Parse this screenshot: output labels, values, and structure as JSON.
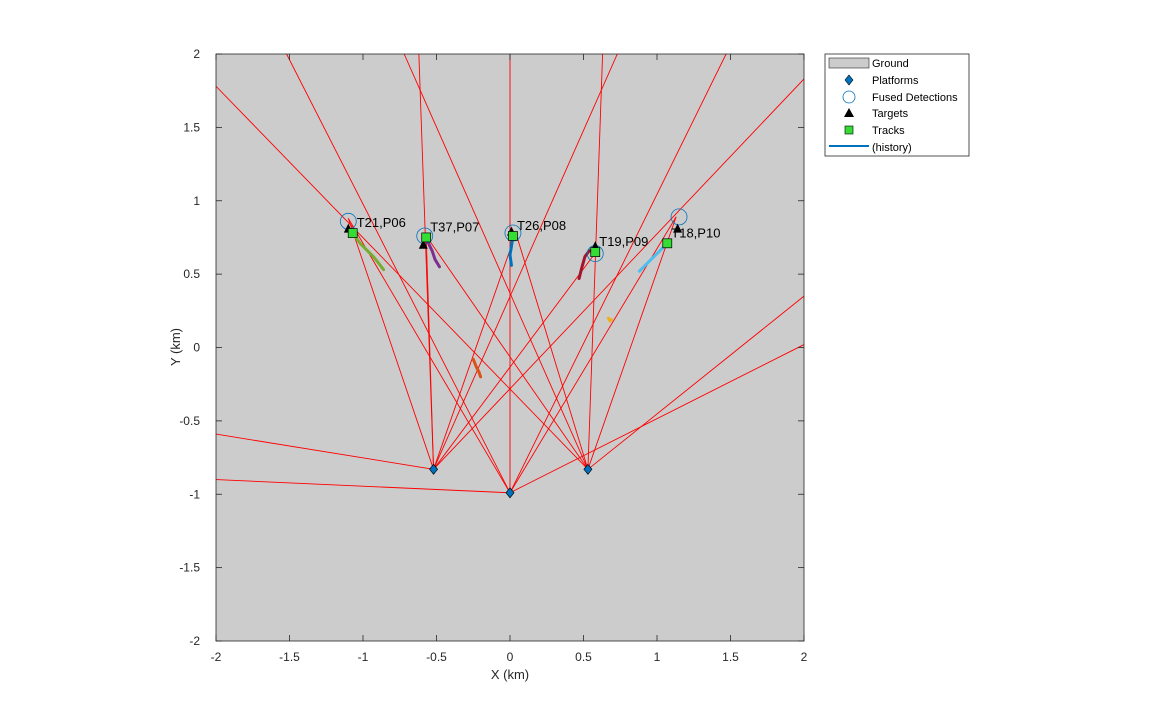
{
  "chart_data": {
    "type": "scatter",
    "xlabel": "X (km)",
    "ylabel": "Y (km)",
    "xlim": [
      -2,
      2
    ],
    "ylim": [
      -2,
      2
    ],
    "x_ticks": [
      -2,
      -1.5,
      -1,
      -0.5,
      0,
      0.5,
      1,
      1.5,
      2
    ],
    "y_ticks": [
      -2,
      -1.5,
      -1,
      -0.5,
      0,
      0.5,
      1,
      1.5,
      2
    ],
    "grid": false,
    "legend_position": "outside-top-right",
    "colors": {
      "ground": "#cccccc",
      "platform": "#0072bd",
      "fused_detection": "#0072bd",
      "target": "#000000",
      "track": "#33dd33",
      "history": "#0072bd",
      "coverage": "#ff0000"
    },
    "legend": [
      "Ground",
      "Platforms",
      "Fused Detections",
      "Targets",
      "Tracks",
      "(history)"
    ],
    "platforms": [
      {
        "x": -0.52,
        "y": -0.83
      },
      {
        "x": 0.0,
        "y": -0.99
      },
      {
        "x": 0.53,
        "y": -0.83
      }
    ],
    "coverage_rays": [
      {
        "from": [
          -0.52,
          -0.83
        ],
        "to": [
          -2.0,
          -0.59
        ]
      },
      {
        "from": [
          -0.52,
          -0.83
        ],
        "to": [
          -0.62,
          2.0
        ]
      },
      {
        "from": [
          -0.52,
          -0.83
        ],
        "to": [
          0.73,
          2.0
        ]
      },
      {
        "from": [
          -0.52,
          -0.83
        ],
        "to": [
          2.0,
          1.83
        ]
      },
      {
        "from": [
          -0.52,
          -0.83
        ],
        "to": [
          -1.1,
          0.88
        ]
      },
      {
        "from": [
          -0.52,
          -0.83
        ],
        "to": [
          -0.57,
          0.76
        ]
      },
      {
        "from": [
          -0.52,
          -0.83
        ],
        "to": [
          0.04,
          0.78
        ]
      },
      {
        "from": [
          -0.52,
          -0.83
        ],
        "to": [
          0.6,
          0.67
        ]
      },
      {
        "from": [
          0.0,
          -0.99
        ],
        "to": [
          -2.0,
          -0.9
        ]
      },
      {
        "from": [
          0.0,
          -0.99
        ],
        "to": [
          -1.52,
          2.0
        ]
      },
      {
        "from": [
          0.0,
          -0.99
        ],
        "to": [
          1.47,
          2.0
        ]
      },
      {
        "from": [
          0.0,
          -0.99
        ],
        "to": [
          2.0,
          0.02
        ]
      },
      {
        "from": [
          0.0,
          -0.99
        ],
        "to": [
          0.0,
          2.0
        ]
      },
      {
        "from": [
          0.0,
          -0.99
        ],
        "to": [
          -1.1,
          0.88
        ]
      },
      {
        "from": [
          0.0,
          -0.99
        ],
        "to": [
          1.13,
          0.89
        ]
      },
      {
        "from": [
          0.53,
          -0.83
        ],
        "to": [
          -2.0,
          1.78
        ]
      },
      {
        "from": [
          0.53,
          -0.83
        ],
        "to": [
          -0.72,
          2.0
        ]
      },
      {
        "from": [
          0.53,
          -0.83
        ],
        "to": [
          0.63,
          2.0
        ]
      },
      {
        "from": [
          0.53,
          -0.83
        ],
        "to": [
          2.0,
          0.35
        ]
      },
      {
        "from": [
          0.53,
          -0.83
        ],
        "to": [
          -0.57,
          0.76
        ]
      },
      {
        "from": [
          0.53,
          -0.83
        ],
        "to": [
          0.04,
          0.78
        ]
      },
      {
        "from": [
          0.53,
          -0.83
        ],
        "to": [
          1.13,
          0.89
        ]
      }
    ],
    "targets": [
      {
        "x": -1.1,
        "y": 0.81
      },
      {
        "x": -0.59,
        "y": 0.7
      },
      {
        "x": 0.01,
        "y": 0.79
      },
      {
        "x": 0.58,
        "y": 0.69
      },
      {
        "x": 1.14,
        "y": 0.81
      }
    ],
    "fused_detections": [
      {
        "x": -1.1,
        "y": 0.86
      },
      {
        "x": -0.58,
        "y": 0.76
      },
      {
        "x": 0.02,
        "y": 0.78
      },
      {
        "x": 0.58,
        "y": 0.64
      },
      {
        "x": 1.15,
        "y": 0.89
      }
    ],
    "tracks": [
      {
        "label": "T21,P06",
        "x": -1.07,
        "y": 0.78
      },
      {
        "label": "T37,P07",
        "x": -0.57,
        "y": 0.75
      },
      {
        "label": "T26,P08",
        "x": 0.02,
        "y": 0.76
      },
      {
        "label": "T19,P09",
        "x": 0.58,
        "y": 0.65
      },
      {
        "label": "T18,P10",
        "x": 1.07,
        "y": 0.71
      }
    ],
    "histories": [
      {
        "color": "#77ac30",
        "points": [
          [
            -1.07,
            0.78
          ],
          [
            -1.02,
            0.71
          ],
          [
            -0.97,
            0.66
          ],
          [
            -0.93,
            0.62
          ],
          [
            -0.89,
            0.57
          ],
          [
            -0.86,
            0.53
          ]
        ]
      },
      {
        "color": "#7e2f8e",
        "points": [
          [
            -0.57,
            0.75
          ],
          [
            -0.55,
            0.7
          ],
          [
            -0.53,
            0.66
          ],
          [
            -0.51,
            0.6
          ],
          [
            -0.48,
            0.55
          ]
        ]
      },
      {
        "color": "#0072bd",
        "points": [
          [
            0.02,
            0.76
          ],
          [
            0.01,
            0.69
          ],
          [
            0.0,
            0.63
          ],
          [
            0.01,
            0.56
          ]
        ]
      },
      {
        "color": "#a2142f",
        "points": [
          [
            0.58,
            0.65
          ],
          [
            0.54,
            0.66
          ],
          [
            0.51,
            0.62
          ],
          [
            0.49,
            0.55
          ],
          [
            0.47,
            0.47
          ]
        ]
      },
      {
        "color": "#4dbeee",
        "points": [
          [
            1.07,
            0.71
          ],
          [
            1.02,
            0.66
          ],
          [
            0.97,
            0.61
          ],
          [
            0.92,
            0.56
          ],
          [
            0.88,
            0.52
          ]
        ]
      },
      {
        "color": "#d95319",
        "points": [
          [
            -0.25,
            -0.08
          ],
          [
            -0.23,
            -0.13
          ],
          [
            -0.21,
            -0.17
          ],
          [
            -0.2,
            -0.2
          ]
        ]
      },
      {
        "color": "#edb120",
        "points": [
          [
            0.67,
            0.2
          ],
          [
            0.68,
            0.18
          ],
          [
            0.69,
            0.19
          ]
        ]
      }
    ]
  }
}
